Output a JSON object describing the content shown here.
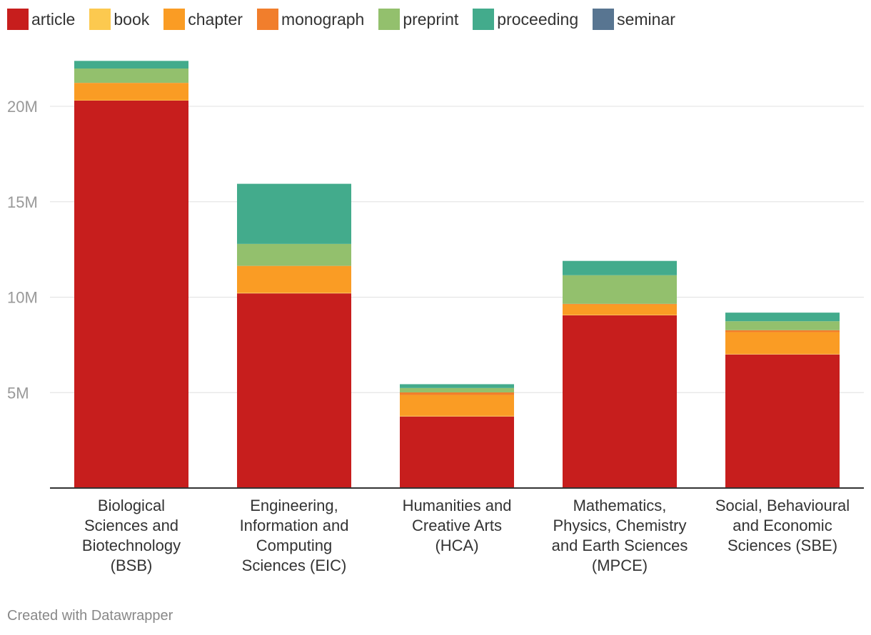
{
  "chart_data": {
    "type": "bar",
    "stacked": true,
    "title": "",
    "xlabel": "",
    "ylabel": "",
    "ylim": [
      0,
      25000000
    ],
    "y_ticks": [
      {
        "value": 5000000,
        "label": "5M"
      },
      {
        "value": 10000000,
        "label": "10M"
      },
      {
        "value": 15000000,
        "label": "15M"
      },
      {
        "value": 20000000,
        "label": "20M"
      }
    ],
    "grid": true,
    "legend_position": "top-left",
    "categories": [
      [
        "Biological",
        "Sciences and",
        "Biotechnology",
        "(BSB)"
      ],
      [
        "Engineering,",
        "Information and",
        "Computing",
        "Sciences (EIC)"
      ],
      [
        "Humanities and",
        "Creative Arts",
        "(HCA)"
      ],
      [
        "Mathematics,",
        "Physics, Chemistry",
        "and Earth Sciences",
        "(MPCE)"
      ],
      [
        "Social, Behavioural",
        "and Economic",
        "Sciences (SBE)"
      ]
    ],
    "series": [
      {
        "name": "article",
        "color": "#c71e1d",
        "values": [
          20300000,
          10200000,
          3750000,
          9050000,
          7000000
        ]
      },
      {
        "name": "book",
        "color": "#fcc94f",
        "values": [
          20000,
          30000,
          30000,
          20000,
          20000
        ]
      },
      {
        "name": "chapter",
        "color": "#fa9c24",
        "values": [
          900000,
          1400000,
          1100000,
          550000,
          1150000
        ]
      },
      {
        "name": "monograph",
        "color": "#f17e2c",
        "values": [
          10000,
          10000,
          130000,
          30000,
          100000
        ]
      },
      {
        "name": "preprint",
        "color": "#93c06d",
        "values": [
          750000,
          1150000,
          230000,
          1500000,
          470000
        ]
      },
      {
        "name": "proceeding",
        "color": "#43ab8c",
        "values": [
          400000,
          3150000,
          200000,
          750000,
          450000
        ]
      },
      {
        "name": "seminar",
        "color": "#587591",
        "values": [
          0,
          0,
          0,
          0,
          0
        ]
      }
    ]
  },
  "footer": {
    "credit": "Created with Datawrapper"
  }
}
